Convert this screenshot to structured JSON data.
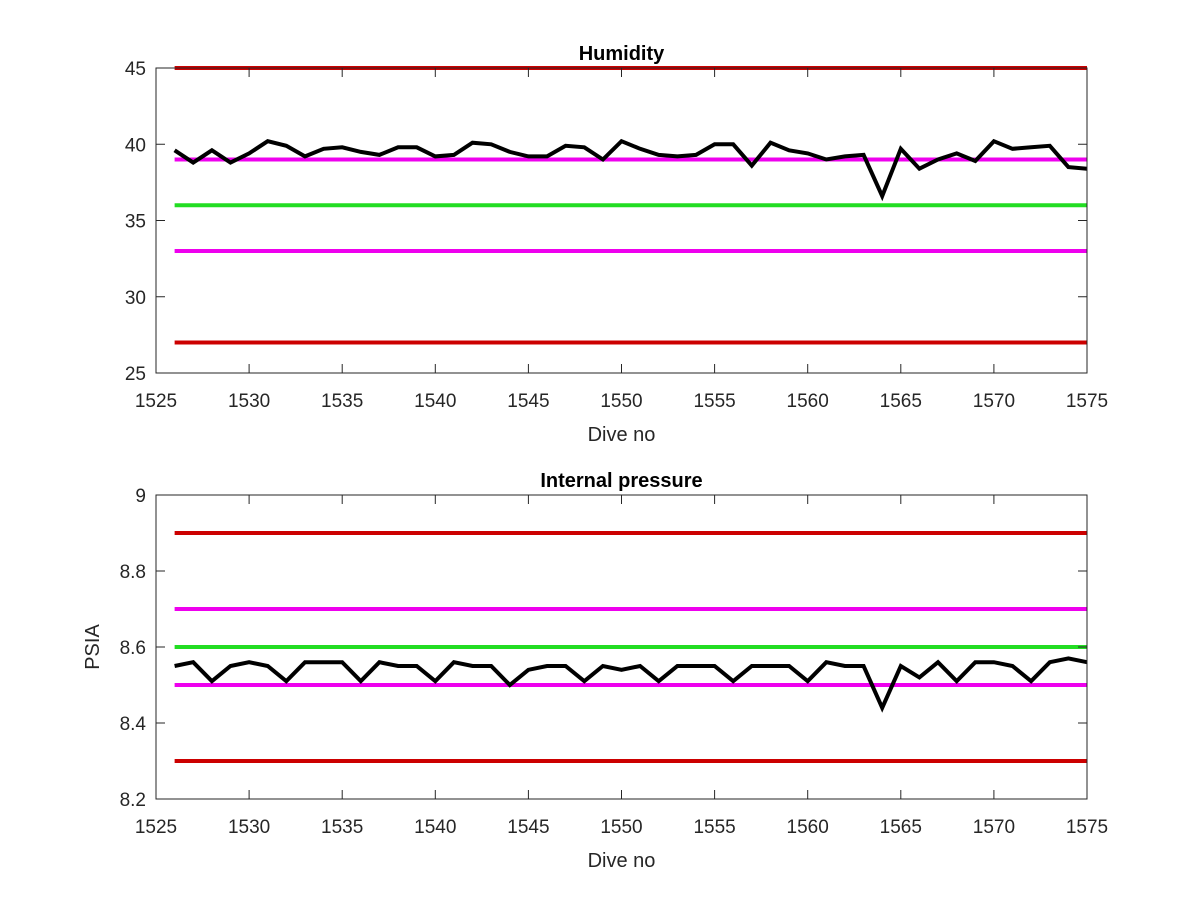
{
  "chart_data": [
    {
      "type": "line",
      "title": "Humidity",
      "xlabel": "Dive no",
      "ylabel": "",
      "xlim": [
        1525,
        1575
      ],
      "ylim": [
        25,
        45
      ],
      "xticks": [
        1525,
        1530,
        1535,
        1540,
        1545,
        1550,
        1555,
        1560,
        1565,
        1570,
        1575
      ],
      "yticks": [
        25,
        30,
        35,
        40,
        45
      ],
      "grid": false,
      "series": [
        {
          "color": "#000000",
          "x": [
            1526,
            1527,
            1528,
            1529,
            1530,
            1531,
            1532,
            1533,
            1534,
            1535,
            1536,
            1537,
            1538,
            1539,
            1540,
            1541,
            1542,
            1543,
            1544,
            1545,
            1546,
            1547,
            1548,
            1549,
            1550,
            1551,
            1552,
            1553,
            1554,
            1555,
            1556,
            1557,
            1558,
            1559,
            1560,
            1561,
            1562,
            1563,
            1564,
            1565,
            1566,
            1567,
            1568,
            1569,
            1570,
            1571,
            1572,
            1573,
            1574,
            1575
          ],
          "y": [
            39.6,
            38.8,
            39.6,
            38.8,
            39.4,
            40.2,
            39.9,
            39.2,
            39.7,
            39.8,
            39.5,
            39.3,
            39.8,
            39.8,
            39.2,
            39.3,
            40.1,
            40.0,
            39.5,
            39.2,
            39.2,
            39.9,
            39.8,
            39.0,
            40.2,
            39.7,
            39.3,
            39.2,
            39.3,
            40.0,
            40.0,
            38.6,
            40.1,
            39.6,
            39.4,
            39.0,
            39.2,
            39.3,
            36.6,
            39.7,
            38.4,
            39.0,
            39.4,
            38.9,
            40.2,
            39.7,
            39.8,
            39.9,
            38.5,
            38.4
          ]
        }
      ],
      "reference_lines": [
        {
          "y": 45,
          "color": "#cc0000"
        },
        {
          "y": 39,
          "color": "#ee00ee"
        },
        {
          "y": 36,
          "color": "#22dd22"
        },
        {
          "y": 33,
          "color": "#ee00ee"
        },
        {
          "y": 27,
          "color": "#cc0000"
        }
      ]
    },
    {
      "type": "line",
      "title": "Internal pressure",
      "xlabel": "Dive no",
      "ylabel": "PSIA",
      "xlim": [
        1525,
        1575
      ],
      "ylim": [
        8.2,
        9.0
      ],
      "xticks": [
        1525,
        1530,
        1535,
        1540,
        1545,
        1550,
        1555,
        1560,
        1565,
        1570,
        1575
      ],
      "yticks": [
        8.2,
        8.4,
        8.6,
        8.8,
        9.0
      ],
      "ytick_labels": [
        "8.2",
        "8.4",
        "8.6",
        "8.8",
        "9"
      ],
      "grid": false,
      "series": [
        {
          "color": "#000000",
          "x": [
            1526,
            1527,
            1528,
            1529,
            1530,
            1531,
            1532,
            1533,
            1534,
            1535,
            1536,
            1537,
            1538,
            1539,
            1540,
            1541,
            1542,
            1543,
            1544,
            1545,
            1546,
            1547,
            1548,
            1549,
            1550,
            1551,
            1552,
            1553,
            1554,
            1555,
            1556,
            1557,
            1558,
            1559,
            1560,
            1561,
            1562,
            1563,
            1564,
            1565,
            1566,
            1567,
            1568,
            1569,
            1570,
            1571,
            1572,
            1573,
            1574,
            1575
          ],
          "y": [
            8.55,
            8.56,
            8.51,
            8.55,
            8.56,
            8.55,
            8.51,
            8.56,
            8.56,
            8.56,
            8.51,
            8.56,
            8.55,
            8.55,
            8.51,
            8.56,
            8.55,
            8.55,
            8.5,
            8.54,
            8.55,
            8.55,
            8.51,
            8.55,
            8.54,
            8.55,
            8.51,
            8.55,
            8.55,
            8.55,
            8.51,
            8.55,
            8.55,
            8.55,
            8.51,
            8.56,
            8.55,
            8.55,
            8.44,
            8.55,
            8.52,
            8.56,
            8.51,
            8.56,
            8.56,
            8.55,
            8.51,
            8.56,
            8.57,
            8.56
          ]
        }
      ],
      "reference_lines": [
        {
          "y": 8.9,
          "color": "#cc0000"
        },
        {
          "y": 8.7,
          "color": "#ee00ee"
        },
        {
          "y": 8.6,
          "color": "#22dd22"
        },
        {
          "y": 8.5,
          "color": "#ee00ee"
        },
        {
          "y": 8.3,
          "color": "#cc0000"
        }
      ]
    }
  ]
}
